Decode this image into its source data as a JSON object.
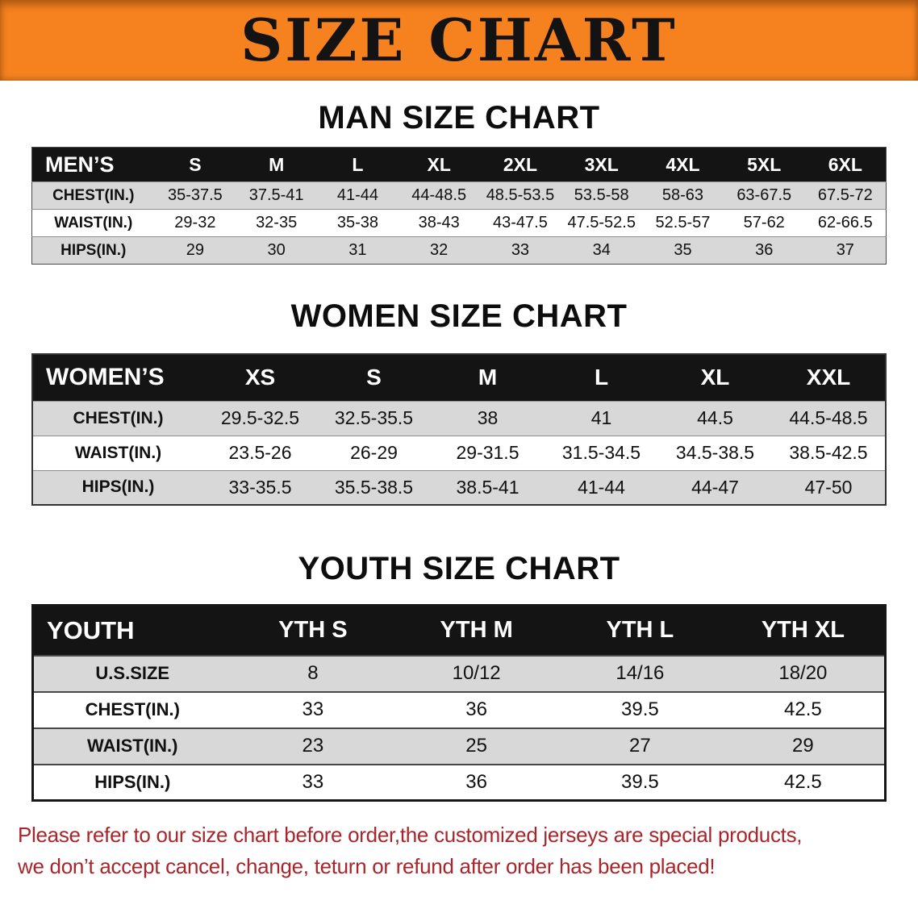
{
  "banner": {
    "title": "SIZE CHART"
  },
  "sections": [
    {
      "id": "men",
      "heading": "MAN SIZE CHART",
      "table": {
        "label": "MEN’S",
        "columns": [
          "S",
          "M",
          "L",
          "XL",
          "2XL",
          "3XL",
          "4XL",
          "5XL",
          "6XL"
        ],
        "rows": [
          {
            "label": "CHEST(IN.)",
            "values": [
              "35-37.5",
              "37.5-41",
              "41-44",
              "44-48.5",
              "48.5-53.5",
              "53.5-58",
              "58-63",
              "63-67.5",
              "67.5-72"
            ]
          },
          {
            "label": "WAIST(IN.)",
            "values": [
              "29-32",
              "32-35",
              "35-38",
              "38-43",
              "43-47.5",
              "47.5-52.5",
              "52.5-57",
              "57-62",
              "62-66.5"
            ]
          },
          {
            "label": "HIPS(IN.)",
            "values": [
              "29",
              "30",
              "31",
              "32",
              "33",
              "34",
              "35",
              "36",
              "37"
            ]
          }
        ]
      }
    },
    {
      "id": "women",
      "heading": "WOMEN SIZE CHART",
      "table": {
        "label": "WOMEN’S",
        "columns": [
          "XS",
          "S",
          "M",
          "L",
          "XL",
          "XXL"
        ],
        "rows": [
          {
            "label": "CHEST(IN.)",
            "values": [
              "29.5-32.5",
              "32.5-35.5",
              "38",
              "41",
              "44.5",
              "44.5-48.5"
            ]
          },
          {
            "label": "WAIST(IN.)",
            "values": [
              "23.5-26",
              "26-29",
              "29-31.5",
              "31.5-34.5",
              "34.5-38.5",
              "38.5-42.5"
            ]
          },
          {
            "label": "HIPS(IN.)",
            "values": [
              "33-35.5",
              "35.5-38.5",
              "38.5-41",
              "41-44",
              "44-47",
              "47-50"
            ]
          }
        ]
      }
    },
    {
      "id": "youth",
      "heading": "YOUTH SIZE CHART",
      "table": {
        "label": "YOUTH",
        "columns": [
          "YTH S",
          "YTH M",
          "YTH L",
          "YTH XL"
        ],
        "rows": [
          {
            "label": "U.S.SIZE",
            "values": [
              "8",
              "10/12",
              "14/16",
              "18/20"
            ]
          },
          {
            "label": "CHEST(IN.)",
            "values": [
              "33",
              "36",
              "39.5",
              "42.5"
            ]
          },
          {
            "label": "WAIST(IN.)",
            "values": [
              "23",
              "25",
              "27",
              "29"
            ]
          },
          {
            "label": "HIPS(IN.)",
            "values": [
              "33",
              "36",
              "39.5",
              "42.5"
            ]
          }
        ]
      }
    }
  ],
  "footer": {
    "line1": "Please refer to our size chart before order,the customized jerseys are special products,",
    "line2": "we don’t accept cancel, change, teturn or refund after order has been placed!"
  },
  "colors": {
    "banner_bg": "#f5821f",
    "header_bg": "#141414",
    "row_alt": "#d8d8d8",
    "note": "#a8262b"
  }
}
